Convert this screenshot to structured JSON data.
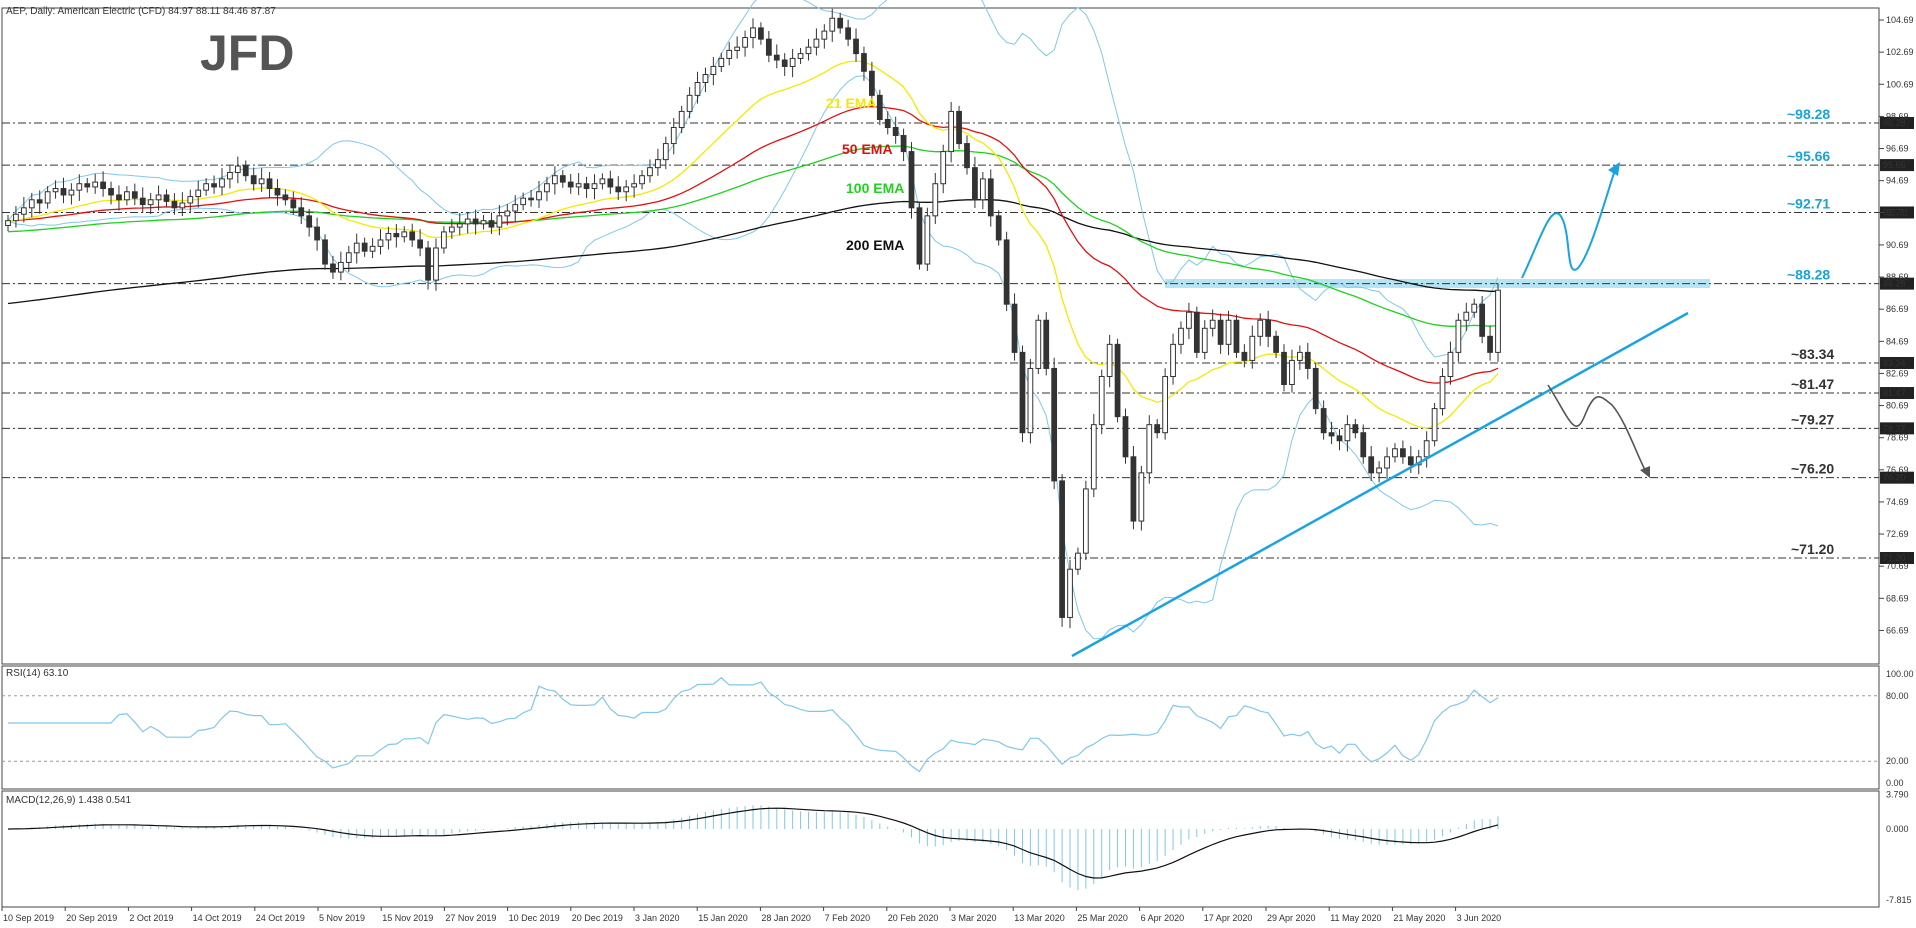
{
  "header": {
    "symbol_line": "AEP, Daily:  American Electric (CFD)  84.97 88.11 84.46 87.87",
    "rsi_title": "RSI(14) 63.10",
    "macd_title": "MACD(12,26,9) 1.438 0.541"
  },
  "logo": {
    "text": "JFD"
  },
  "colors": {
    "bull_candle": "#ffffff",
    "bear_candle": "#333333",
    "bands": "#7ec8ea",
    "ema21": "#f2ea00",
    "ema50": "#e01010",
    "ema100": "#1ed21e",
    "ema200": "#111111",
    "level_text": "#1aa3d6",
    "level_text_gray": "#333333",
    "trendline": "#1aa3e0",
    "down_arrow": "#555555",
    "highlight_zone": "#a8dff2"
  },
  "price_axis": {
    "labels": [
      "104.69",
      "102.69",
      "100.69",
      "98.69",
      "96.69",
      "94.69",
      "92.71",
      "90.69",
      "88.69",
      "86.69",
      "84.69",
      "82.69",
      "80.69",
      "78.69",
      "76.69",
      "74.69",
      "72.69",
      "70.69",
      "68.69",
      "66.69"
    ],
    "tag_labels": [
      "98.28",
      "95.66",
      "92.71",
      "88.28",
      "83.34",
      "81.47",
      "79.27",
      "76.20",
      "71.20"
    ]
  },
  "rsi_axis": {
    "labels": [
      "100.00",
      "80.00",
      "20.00",
      "0.00"
    ]
  },
  "macd_axis": {
    "labels": [
      "3.790",
      "0.000",
      "-7.815"
    ]
  },
  "time_axis": {
    "labels": [
      "10 Sep 2019",
      "20 Sep 2019",
      "2 Oct 2019",
      "14 Oct 2019",
      "24 Oct 2019",
      "5 Nov 2019",
      "15 Nov 2019",
      "27 Nov 2019",
      "10 Dec 2019",
      "20 Dec 2019",
      "3 Jan 2020",
      "15 Jan 2020",
      "28 Jan 2020",
      "7 Feb 2020",
      "20 Feb 2020",
      "3 Mar 2020",
      "13 Mar 2020",
      "25 Mar 2020",
      "6 Apr 2020",
      "17 Apr 2020",
      "29 Apr 2020",
      "11 May 2020",
      "21 May 2020",
      "3 Jun 2020"
    ]
  },
  "chart_data": {
    "type": "candlestick",
    "title": "AEP, Daily:  American Electric (CFD)",
    "ohlc_last": {
      "open": 84.97,
      "high": 88.11,
      "low": 84.46,
      "close": 87.87
    },
    "levels": [
      "~98.28",
      "~95.66",
      "~92.71",
      "~88.28",
      "~83.34",
      "~81.47",
      "~79.27",
      "~76.20",
      "~71.20"
    ],
    "level_values": [
      98.28,
      95.66,
      92.71,
      88.28,
      83.34,
      81.47,
      79.27,
      76.2,
      71.2
    ],
    "ema_labels": [
      "21 EMA",
      "50 EMA",
      "100 EMA",
      "200 EMA"
    ],
    "ylim": [
      65.5,
      105.6
    ],
    "closes": [
      92.2,
      92.6,
      93.0,
      93.5,
      93.3,
      94.0,
      94.2,
      93.8,
      94.1,
      94.5,
      94.3,
      94.6,
      94.2,
      93.8,
      93.5,
      94.0,
      93.6,
      93.2,
      93.5,
      93.8,
      93.4,
      93.0,
      93.3,
      93.7,
      94.1,
      94.5,
      94.3,
      94.8,
      95.2,
      95.6,
      95.0,
      94.5,
      94.8,
      94.2,
      93.8,
      93.5,
      93.0,
      92.5,
      91.8,
      91.0,
      89.5,
      89.0,
      89.6,
      90.2,
      90.8,
      90.3,
      90.6,
      91.0,
      91.4,
      91.2,
      91.5,
      91.0,
      90.5,
      88.5,
      90.5,
      91.5,
      91.8,
      92.0,
      92.3,
      92.0,
      92.2,
      91.8,
      92.5,
      92.8,
      93.2,
      93.6,
      93.5,
      94.0,
      94.5,
      95.0,
      94.6,
      94.3,
      94.5,
      94.2,
      94.5,
      94.8,
      94.3,
      94.0,
      94.3,
      94.5,
      95.0,
      95.5,
      96.0,
      97.0,
      98.0,
      99.0,
      100.0,
      100.8,
      101.3,
      101.8,
      102.3,
      102.8,
      103.0,
      103.6,
      104.2,
      103.5,
      102.5,
      102.2,
      101.8,
      102.3,
      102.6,
      103.0,
      103.5,
      104.0,
      104.8,
      104.2,
      103.5,
      102.6,
      101.5,
      100.0,
      98.5,
      98.0,
      97.5,
      96.5,
      93.0,
      89.5,
      92.5,
      94.5,
      96.5,
      99.0,
      97.0,
      95.5,
      93.5,
      94.8,
      92.5,
      91.0,
      87.0,
      84.0,
      79.0,
      83.0,
      86.0,
      83.0,
      76.0,
      67.5,
      70.5,
      71.5,
      75.5,
      79.5,
      82.5,
      84.5,
      80.0,
      77.5,
      73.5,
      76.5,
      79.5,
      79.0,
      82.5,
      84.5,
      85.5,
      86.5,
      84.0,
      85.5,
      86.0,
      84.5,
      86.0,
      84.0,
      83.5,
      85.0,
      86.0,
      85.0,
      84.0,
      82.0,
      83.5,
      84.0,
      83.0,
      80.5,
      79.0,
      78.8,
      78.5,
      79.5,
      79.0,
      77.5,
      76.5,
      76.8,
      77.5,
      78.0,
      77.5,
      77.0,
      77.5,
      78.5,
      80.5,
      82.5,
      84.0,
      86.0,
      86.5,
      87.0,
      85.0,
      84.0,
      87.87
    ]
  }
}
